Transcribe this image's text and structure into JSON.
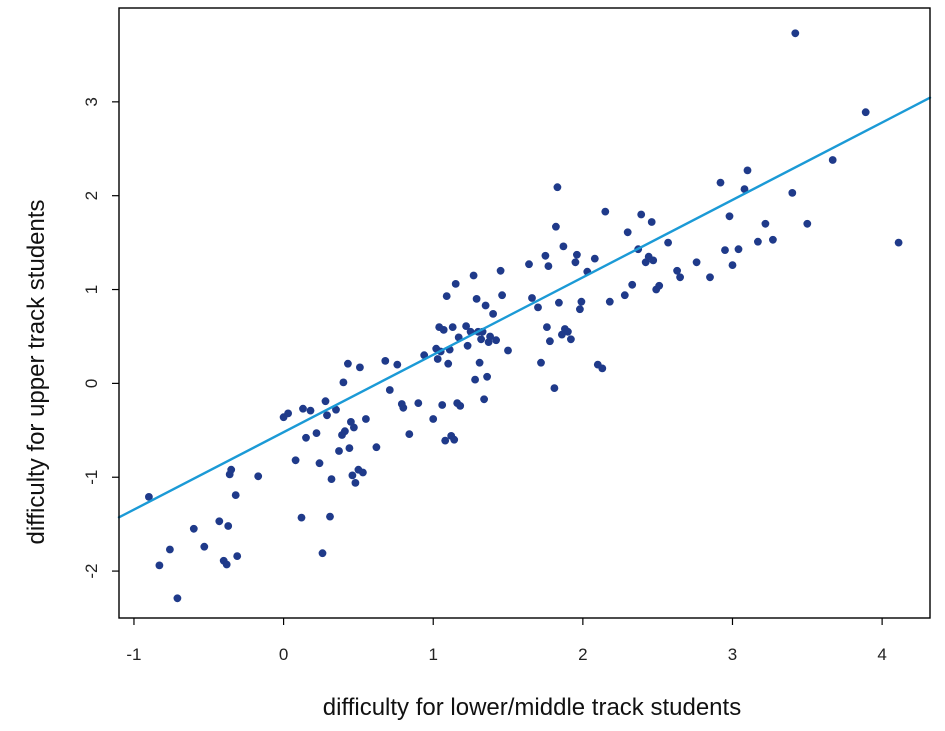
{
  "chart_data": {
    "type": "scatter",
    "xlabel": "difficulty for lower/middle track students",
    "ylabel": "difficulty for upper track students",
    "xlim": [
      -1.1,
      4.32
    ],
    "ylim": [
      -2.5,
      4.0
    ],
    "xticks": [
      -1,
      0,
      1,
      2,
      3,
      4
    ],
    "yticks": [
      -2,
      -1,
      0,
      1,
      2,
      3
    ],
    "grid": false,
    "colors": {
      "points": "#1f3a8a",
      "line": "#1b9ad6",
      "frame": "#000000"
    },
    "regression_line": {
      "intercept": -0.52,
      "slope": 0.825
    },
    "series": [
      {
        "values": [
          [
            -0.9,
            -1.21
          ],
          [
            -0.83,
            -1.94
          ],
          [
            -0.76,
            -1.77
          ],
          [
            -0.71,
            -2.29
          ],
          [
            -0.6,
            -1.55
          ],
          [
            -0.53,
            -1.74
          ],
          [
            -0.43,
            -1.47
          ],
          [
            -0.4,
            -1.89
          ],
          [
            -0.38,
            -1.93
          ],
          [
            -0.37,
            -1.52
          ],
          [
            -0.36,
            -0.97
          ],
          [
            -0.35,
            -0.92
          ],
          [
            -0.32,
            -1.19
          ],
          [
            -0.31,
            -1.84
          ],
          [
            -0.17,
            -0.99
          ],
          [
            0.0,
            -0.36
          ],
          [
            0.03,
            -0.32
          ],
          [
            0.08,
            -0.82
          ],
          [
            0.12,
            -1.43
          ],
          [
            0.13,
            -0.27
          ],
          [
            0.15,
            -0.58
          ],
          [
            0.18,
            -0.29
          ],
          [
            0.22,
            -0.53
          ],
          [
            0.24,
            -0.85
          ],
          [
            0.26,
            -1.81
          ],
          [
            0.28,
            -0.19
          ],
          [
            0.29,
            -0.34
          ],
          [
            0.31,
            -1.42
          ],
          [
            0.32,
            -1.02
          ],
          [
            0.35,
            -0.28
          ],
          [
            0.37,
            -0.72
          ],
          [
            0.39,
            -0.55
          ],
          [
            0.4,
            0.01
          ],
          [
            0.41,
            -0.51
          ],
          [
            0.43,
            0.21
          ],
          [
            0.44,
            -0.69
          ],
          [
            0.45,
            -0.41
          ],
          [
            0.46,
            -0.98
          ],
          [
            0.47,
            -0.47
          ],
          [
            0.48,
            -1.06
          ],
          [
            0.5,
            -0.92
          ],
          [
            0.51,
            0.17
          ],
          [
            0.53,
            -0.95
          ],
          [
            0.55,
            -0.38
          ],
          [
            0.62,
            -0.68
          ],
          [
            0.68,
            0.24
          ],
          [
            0.71,
            -0.07
          ],
          [
            0.76,
            0.2
          ],
          [
            0.79,
            -0.22
          ],
          [
            0.8,
            -0.26
          ],
          [
            0.84,
            -0.54
          ],
          [
            0.9,
            -0.21
          ],
          [
            0.94,
            0.3
          ],
          [
            1.0,
            -0.38
          ],
          [
            1.02,
            0.37
          ],
          [
            1.03,
            0.26
          ],
          [
            1.04,
            0.6
          ],
          [
            1.05,
            0.34
          ],
          [
            1.06,
            -0.23
          ],
          [
            1.07,
            0.57
          ],
          [
            1.08,
            -0.61
          ],
          [
            1.09,
            0.93
          ],
          [
            1.1,
            0.21
          ],
          [
            1.11,
            0.36
          ],
          [
            1.12,
            -0.56
          ],
          [
            1.13,
            0.6
          ],
          [
            1.14,
            -0.6
          ],
          [
            1.15,
            1.06
          ],
          [
            1.16,
            -0.21
          ],
          [
            1.17,
            0.49
          ],
          [
            1.18,
            -0.24
          ],
          [
            1.22,
            0.61
          ],
          [
            1.23,
            0.4
          ],
          [
            1.25,
            0.55
          ],
          [
            1.27,
            1.15
          ],
          [
            1.28,
            0.04
          ],
          [
            1.29,
            0.9
          ],
          [
            1.3,
            0.55
          ],
          [
            1.31,
            0.22
          ],
          [
            1.32,
            0.47
          ],
          [
            1.33,
            0.55
          ],
          [
            1.34,
            -0.17
          ],
          [
            1.35,
            0.83
          ],
          [
            1.36,
            0.07
          ],
          [
            1.37,
            0.44
          ],
          [
            1.38,
            0.5
          ],
          [
            1.4,
            0.74
          ],
          [
            1.42,
            0.46
          ],
          [
            1.45,
            1.2
          ],
          [
            1.46,
            0.94
          ],
          [
            1.5,
            0.35
          ],
          [
            1.64,
            1.27
          ],
          [
            1.66,
            0.91
          ],
          [
            1.7,
            0.81
          ],
          [
            1.72,
            0.22
          ],
          [
            1.75,
            1.36
          ],
          [
            1.76,
            0.6
          ],
          [
            1.77,
            1.25
          ],
          [
            1.78,
            0.45
          ],
          [
            1.81,
            -0.05
          ],
          [
            1.82,
            1.67
          ],
          [
            1.83,
            2.09
          ],
          [
            1.84,
            0.86
          ],
          [
            1.86,
            0.52
          ],
          [
            1.87,
            1.46
          ],
          [
            1.88,
            0.58
          ],
          [
            1.9,
            0.55
          ],
          [
            1.92,
            0.47
          ],
          [
            1.95,
            1.29
          ],
          [
            1.96,
            1.37
          ],
          [
            1.98,
            0.79
          ],
          [
            1.99,
            0.87
          ],
          [
            2.03,
            1.19
          ],
          [
            2.08,
            1.33
          ],
          [
            2.1,
            0.2
          ],
          [
            2.13,
            0.16
          ],
          [
            2.15,
            1.83
          ],
          [
            2.18,
            0.87
          ],
          [
            2.28,
            0.94
          ],
          [
            2.3,
            1.61
          ],
          [
            2.33,
            1.05
          ],
          [
            2.37,
            1.43
          ],
          [
            2.39,
            1.8
          ],
          [
            2.42,
            1.29
          ],
          [
            2.44,
            1.35
          ],
          [
            2.46,
            1.72
          ],
          [
            2.47,
            1.31
          ],
          [
            2.49,
            1.0
          ],
          [
            2.51,
            1.04
          ],
          [
            2.57,
            1.5
          ],
          [
            2.63,
            1.2
          ],
          [
            2.65,
            1.13
          ],
          [
            2.76,
            1.29
          ],
          [
            2.85,
            1.13
          ],
          [
            2.92,
            2.14
          ],
          [
            2.95,
            1.42
          ],
          [
            2.98,
            1.78
          ],
          [
            3.0,
            1.26
          ],
          [
            3.04,
            1.43
          ],
          [
            3.08,
            2.07
          ],
          [
            3.1,
            2.27
          ],
          [
            3.17,
            1.51
          ],
          [
            3.22,
            1.7
          ],
          [
            3.27,
            1.53
          ],
          [
            3.4,
            2.03
          ],
          [
            3.42,
            3.73
          ],
          [
            3.5,
            1.7
          ],
          [
            3.67,
            2.38
          ],
          [
            3.89,
            2.89
          ],
          [
            4.11,
            1.5
          ]
        ]
      }
    ]
  }
}
